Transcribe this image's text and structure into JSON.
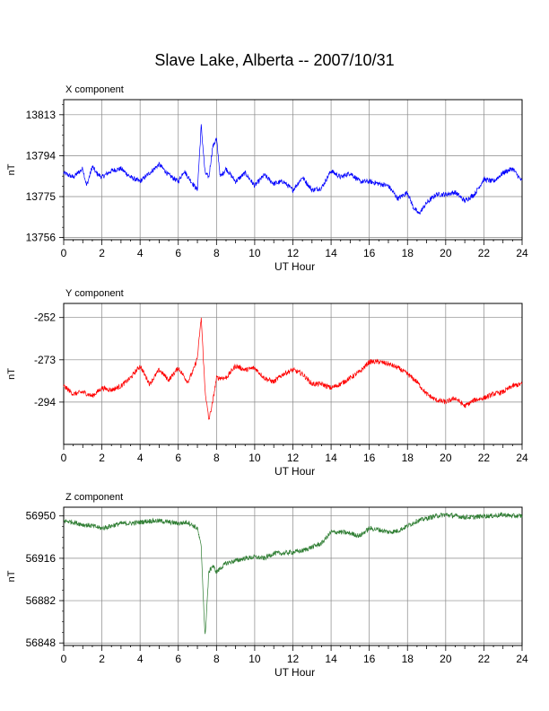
{
  "title": "Slave Lake, Alberta -- 2007/10/31",
  "colors": {
    "x": "#0000ff",
    "y": "#ff0000",
    "z": "#2e7d32",
    "grid": "#888888",
    "axis": "#000000"
  },
  "chart_data": [
    {
      "type": "line",
      "title": "X component",
      "xlabel": "UT Hour",
      "ylabel": "nT",
      "xlim": [
        0,
        24
      ],
      "ylim": [
        13755,
        13820
      ],
      "xticks": [
        0,
        2,
        4,
        6,
        8,
        10,
        12,
        14,
        16,
        18,
        20,
        22,
        24
      ],
      "yticks": [
        13756,
        13775,
        13794,
        13813
      ],
      "grid": true,
      "color": "#0000ff",
      "series": [
        {
          "x": [
            0,
            0.5,
            1,
            1.2,
            1.5,
            1.7,
            2,
            2.5,
            3,
            3.5,
            4,
            4.5,
            5,
            5.5,
            6,
            6.3,
            6.6,
            7,
            7.2,
            7.4,
            7.6,
            7.8,
            8,
            8.2,
            8.5,
            9,
            9.5,
            10,
            10.5,
            11,
            11.5,
            12,
            12.5,
            13,
            13.5,
            14,
            14.5,
            15,
            15.5,
            16,
            16.5,
            17,
            17.5,
            18,
            18.3,
            18.6,
            19,
            19.5,
            20,
            20.5,
            21,
            21.5,
            22,
            22.5,
            23,
            23.5,
            24
          ],
          "y": [
            13786,
            13784,
            13788,
            13780,
            13789,
            13786,
            13784,
            13787,
            13788,
            13784,
            13782,
            13786,
            13790,
            13785,
            13782,
            13787,
            13783,
            13778,
            13808,
            13786,
            13784,
            13798,
            13802,
            13784,
            13788,
            13782,
            13786,
            13780,
            13785,
            13781,
            13782,
            13778,
            13784,
            13778,
            13779,
            13787,
            13784,
            13786,
            13782,
            13782,
            13781,
            13780,
            13774,
            13777,
            13770,
            13767,
            13772,
            13776,
            13776,
            13777,
            13773,
            13776,
            13783,
            13782,
            13786,
            13788,
            13782
          ]
        }
      ]
    },
    {
      "type": "line",
      "title": "Y component",
      "xlabel": "UT Hour",
      "ylabel": "nT",
      "xlim": [
        0,
        24
      ],
      "ylim": [
        -315,
        -245
      ],
      "xticks": [
        0,
        2,
        4,
        6,
        8,
        10,
        12,
        14,
        16,
        18,
        20,
        22,
        24
      ],
      "yticks": [
        -252,
        -273,
        -294
      ],
      "grid": true,
      "color": "#ff0000",
      "series": [
        {
          "x": [
            0,
            0.5,
            1,
            1.5,
            2,
            2.5,
            3,
            3.5,
            4,
            4.5,
            5,
            5.5,
            6,
            6.5,
            6.8,
            7,
            7.2,
            7.4,
            7.6,
            7.8,
            8,
            8.5,
            9,
            9.5,
            10,
            10.5,
            11,
            11.5,
            12,
            12.5,
            13,
            13.5,
            14,
            14.5,
            15,
            15.5,
            16,
            16.5,
            17,
            17.5,
            18,
            18.5,
            19,
            19.5,
            20,
            20.5,
            21,
            21.5,
            22,
            22.5,
            23,
            23.5,
            24
          ],
          "y": [
            -286,
            -290,
            -289,
            -291,
            -287,
            -288,
            -286,
            -282,
            -276,
            -285,
            -278,
            -283,
            -277,
            -284,
            -278,
            -272,
            -252,
            -288,
            -303,
            -294,
            -282,
            -282,
            -276,
            -278,
            -277,
            -282,
            -284,
            -280,
            -278,
            -280,
            -285,
            -285,
            -287,
            -285,
            -282,
            -279,
            -274,
            -274,
            -275,
            -277,
            -280,
            -284,
            -290,
            -293,
            -294,
            -292,
            -296,
            -293,
            -292,
            -290,
            -289,
            -286,
            -285
          ]
        }
      ]
    },
    {
      "type": "line",
      "title": "Z component",
      "xlabel": "UT Hour",
      "ylabel": "nT",
      "xlim": [
        0,
        24
      ],
      "ylim": [
        56846,
        56957
      ],
      "xticks": [
        0,
        2,
        4,
        6,
        8,
        10,
        12,
        14,
        16,
        18,
        20,
        22,
        24
      ],
      "yticks": [
        56848,
        56882,
        56916,
        56950
      ],
      "grid": true,
      "color": "#2e7d32",
      "series": [
        {
          "x": [
            0,
            0.5,
            1,
            1.5,
            2,
            2.5,
            3,
            3.5,
            4,
            4.5,
            5,
            5.5,
            6,
            6.5,
            6.8,
            7,
            7.2,
            7.4,
            7.6,
            7.8,
            8,
            8.5,
            9,
            9.5,
            10,
            10.5,
            11,
            11.5,
            12,
            12.5,
            13,
            13.5,
            14,
            14.5,
            15,
            15.5,
            16,
            16.5,
            17,
            17.5,
            18,
            18.5,
            19,
            19.5,
            20,
            20.5,
            21,
            21.5,
            22,
            22.5,
            23,
            23.5,
            24
          ],
          "y": [
            56946,
            56945,
            56943,
            56942,
            56940,
            56942,
            56944,
            56944,
            56945,
            56946,
            56946,
            56945,
            56944,
            56945,
            56942,
            56940,
            56925,
            56852,
            56905,
            56910,
            56905,
            56912,
            56914,
            56916,
            56917,
            56916,
            56920,
            56920,
            56921,
            56922,
            56925,
            56928,
            56937,
            56937,
            56936,
            56934,
            56940,
            56939,
            56937,
            56938,
            56942,
            56946,
            56948,
            56950,
            56951,
            56950,
            56949,
            56949,
            56950,
            56950,
            56951,
            56950,
            56950
          ]
        }
      ]
    }
  ]
}
